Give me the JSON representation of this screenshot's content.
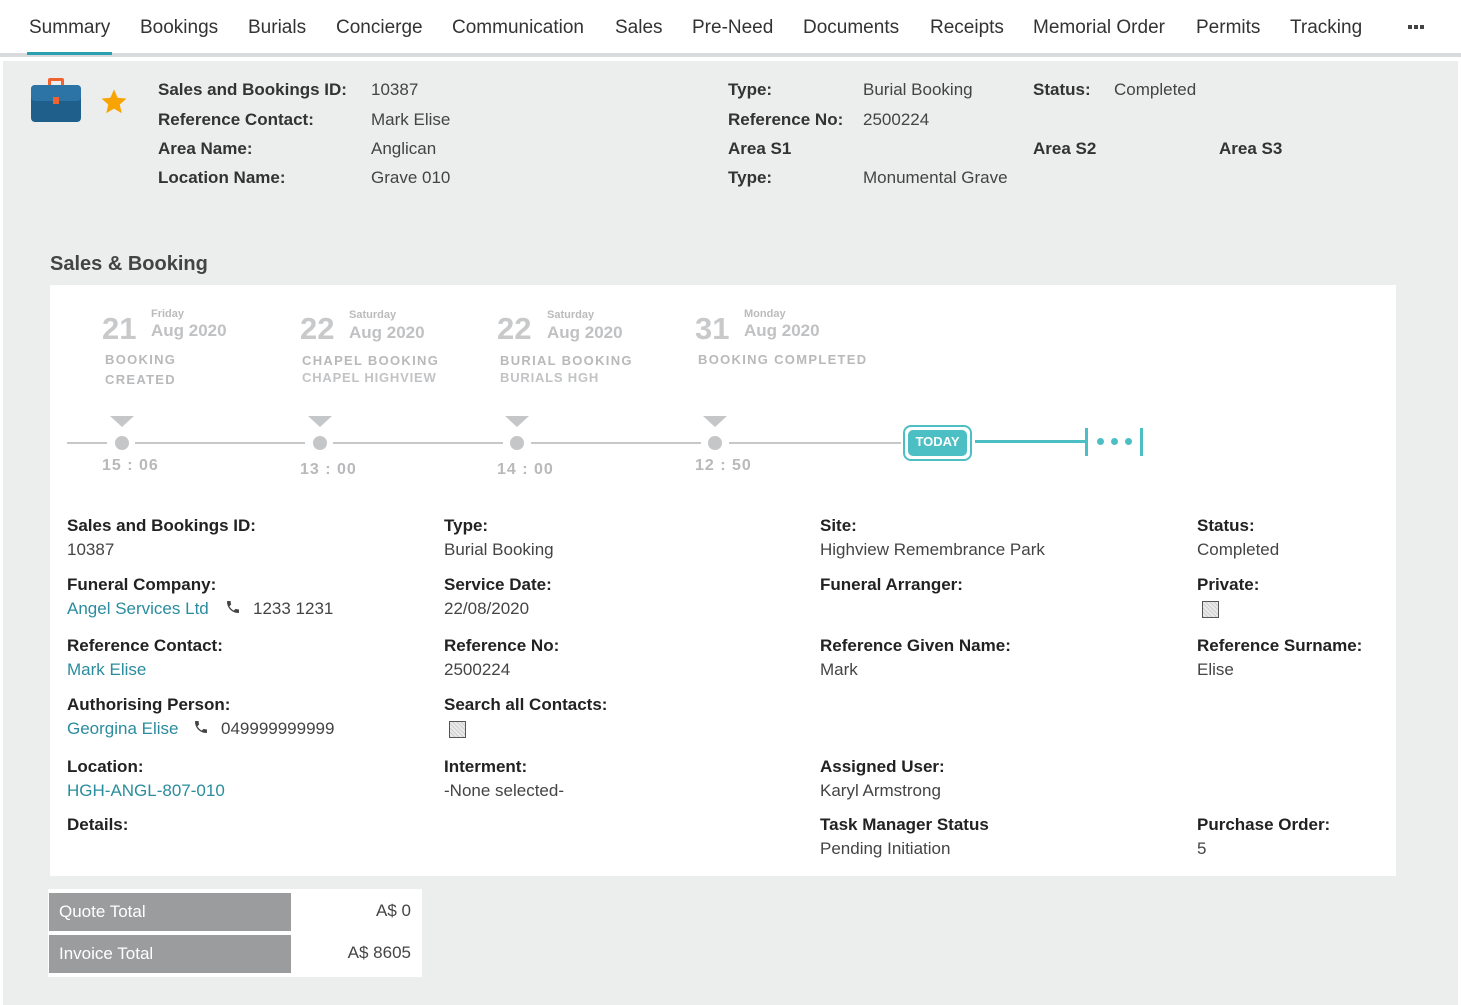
{
  "tabs": [
    "Summary",
    "Bookings",
    "Burials",
    "Concierge",
    "Communication",
    "Sales",
    "Pre-Need",
    "Documents",
    "Receipts",
    "Memorial Order",
    "Permits",
    "Tracking"
  ],
  "active_tab": "Summary",
  "header": {
    "sales_id_label": "Sales and Bookings ID:",
    "sales_id": "10387",
    "ref_contact_label": "Reference Contact:",
    "ref_contact": "Mark Elise",
    "area_name_label": "Area Name:",
    "area_name": "Anglican",
    "location_name_label": "Location Name:",
    "location_name": "Grave 010",
    "type_label": "Type:",
    "type": "Burial Booking",
    "ref_no_label": "Reference No:",
    "ref_no": "2500224",
    "area_s1_label": "Area S1",
    "type2_label": "Type:",
    "type2": "Monumental Grave",
    "status_label": "Status:",
    "status": "Completed",
    "area_s2_label": "Area S2",
    "area_s3_label": "Area S3"
  },
  "section_title": "Sales & Booking",
  "timeline": {
    "events": [
      {
        "day": "21",
        "weekday": "Friday",
        "month": "Aug 2020",
        "line1": "BOOKING",
        "line2": "CREATED",
        "time": "15 : 06"
      },
      {
        "day": "22",
        "weekday": "Saturday",
        "month": "Aug 2020",
        "line1": "CHAPEL BOOKING",
        "line2": "CHAPEL HIGHVIEW",
        "time": "13 : 00"
      },
      {
        "day": "22",
        "weekday": "Saturday",
        "month": "Aug 2020",
        "line1": "BURIAL BOOKING",
        "line2": "BURIALS HGH",
        "time": "14 : 00"
      },
      {
        "day": "31",
        "weekday": "Monday",
        "month": "Aug 2020",
        "line1": "BOOKING COMPLETED",
        "line2": "",
        "time": "12 : 50"
      }
    ],
    "today_label": "TODAY"
  },
  "details": {
    "sales_id_label": "Sales and Bookings ID:",
    "sales_id": "10387",
    "type_label": "Type:",
    "type": "Burial Booking",
    "site_label": "Site:",
    "site": "Highview Remembrance Park",
    "status_label": "Status:",
    "status": "Completed",
    "funeral_company_label": "Funeral Company:",
    "funeral_company": "Angel Services Ltd",
    "funeral_company_phone": "1233 1231",
    "service_date_label": "Service Date:",
    "service_date": "22/08/2020",
    "funeral_arranger_label": "Funeral Arranger:",
    "private_label": "Private:",
    "ref_contact_label": "Reference Contact:",
    "ref_contact": "Mark Elise",
    "ref_no_label": "Reference No:",
    "ref_no": "2500224",
    "ref_given_label": "Reference Given Name:",
    "ref_given": "Mark",
    "ref_surname_label": "Reference Surname:",
    "ref_surname": "Elise",
    "auth_person_label": "Authorising Person:",
    "auth_person": "Georgina Elise",
    "auth_phone": "049999999999",
    "search_contacts_label": "Search all Contacts:",
    "location_label": "Location:",
    "location": "HGH-ANGL-807-010",
    "interment_label": "Interment:",
    "interment": "-None selected-",
    "assigned_user_label": "Assigned User:",
    "assigned_user": "Karyl Armstrong",
    "details_label": "Details:",
    "task_status_label": "Task Manager Status",
    "task_status": "Pending Initiation",
    "purchase_order_label": "Purchase Order:",
    "purchase_order": "5"
  },
  "totals": {
    "quote_label": "Quote Total",
    "quote_value": "A$ 0",
    "invoice_label": "Invoice Total",
    "invoice_value": "A$ 8605"
  },
  "colors": {
    "accent": "#2a9fb0",
    "teal": "#4bbfc4",
    "link": "#2a8c9e",
    "star": "#f7a400",
    "briefcase": "#1f5f8b"
  }
}
